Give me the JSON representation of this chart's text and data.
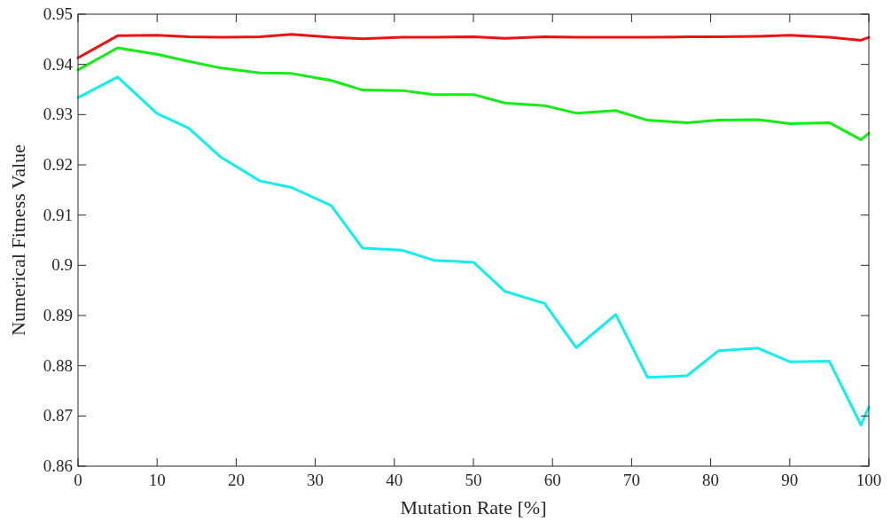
{
  "chart_data": {
    "type": "line",
    "xlabel": "Mutation Rate [%]",
    "ylabel": "Numerical Fitness Value",
    "x": [
      0,
      5,
      10,
      14,
      18,
      23,
      27,
      32,
      36,
      41,
      45,
      50,
      54,
      59,
      63,
      68,
      72,
      77,
      81,
      86,
      90,
      95,
      99,
      100
    ],
    "series": [
      {
        "color": "#ee1111",
        "values": [
          0.9413,
          0.9457,
          0.9458,
          0.9455,
          0.9454,
          0.9455,
          0.946,
          0.9454,
          0.9451,
          0.9454,
          0.9454,
          0.9455,
          0.9452,
          0.9455,
          0.9454,
          0.9454,
          0.9454,
          0.9455,
          0.9455,
          0.9456,
          0.9458,
          0.9454,
          0.9448,
          0.9454
        ]
      },
      {
        "color": "#11ee11",
        "values": [
          0.9389,
          0.9433,
          0.942,
          0.9406,
          0.9393,
          0.9383,
          0.9382,
          0.9368,
          0.9349,
          0.9348,
          0.934,
          0.934,
          0.9323,
          0.9318,
          0.9303,
          0.9308,
          0.9289,
          0.9284,
          0.9289,
          0.929,
          0.9282,
          0.9284,
          0.925,
          0.9263
        ]
      },
      {
        "color": "#11eeee",
        "values": [
          0.9334,
          0.9375,
          0.9302,
          0.9273,
          0.9216,
          0.9168,
          0.9155,
          0.9119,
          0.9034,
          0.903,
          0.901,
          0.9006,
          0.8948,
          0.8924,
          0.8836,
          0.8902,
          0.8777,
          0.878,
          0.883,
          0.8835,
          0.8808,
          0.8809,
          0.8682,
          0.8718
        ]
      }
    ],
    "xlim": [
      0,
      100
    ],
    "xticks": [
      0,
      10,
      20,
      30,
      40,
      50,
      60,
      70,
      80,
      90,
      100
    ],
    "ylim": [
      0.86,
      0.95
    ],
    "yticks": [
      0.86,
      0.87,
      0.88,
      0.89,
      0.9,
      0.91,
      0.92,
      0.93,
      0.94,
      0.95
    ],
    "grid": false,
    "marker": "none",
    "line_style": "solid"
  }
}
